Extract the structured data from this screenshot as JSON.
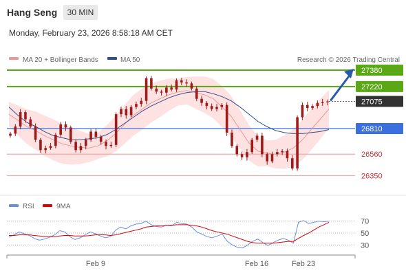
{
  "header": {
    "title": "Hang Seng",
    "timeframe": "30 MIN"
  },
  "timestamp": "Monday, February 23, 2026 8:58:18 AM CET",
  "legend": {
    "bollinger_label": "MA 20 + Bollinger Bands",
    "ma50_label": "MA 50",
    "rsi_label": "RSI",
    "rsi_ma_label": "9MA"
  },
  "copyright": "Research © 2026 Trading Central",
  "colors": {
    "resistance": "#5aa816",
    "pivot": "#3b6fe0",
    "support": "#f4a8a8",
    "current": "#333333",
    "candle": "#9d1b1b",
    "bands": "#fdd7d7",
    "ma20": "#e89a9a",
    "ma50": "#2f4f8f",
    "arrow": "#2a5aa8",
    "rsi": "#6a8fe0",
    "rsi_ma": "#e00000"
  },
  "chart_data": {
    "type": "line",
    "title": "Hang Seng",
    "subtitle": "30 MIN",
    "xlabel": "",
    "ylabel": "",
    "x_ticks": [
      "Feb 9",
      "Feb 16",
      "Feb 23"
    ],
    "price_range": [
      26300,
      27400
    ],
    "price_levels": [
      {
        "value": 27380,
        "label": "27380",
        "kind": "resistance"
      },
      {
        "value": 27220,
        "label": "27220",
        "kind": "resistance"
      },
      {
        "value": 27075,
        "label": "27075",
        "kind": "current"
      },
      {
        "value": 26810,
        "label": "26810",
        "kind": "pivot"
      },
      {
        "value": 26560,
        "label": "26560",
        "kind": "support"
      },
      {
        "value": 26350,
        "label": "26350",
        "kind": "support"
      }
    ],
    "series": [
      {
        "name": "MA 20 + Bollinger Bands",
        "values": [
          26950,
          26890,
          26830,
          26790,
          26740,
          26700,
          26660,
          26640,
          26625,
          26620,
          26640,
          26690,
          26760,
          26850,
          26940,
          27000,
          27060,
          27100,
          27140,
          27165,
          27180,
          27160,
          27140,
          27100,
          27020,
          26930,
          26800,
          26670,
          26590,
          26570,
          26560,
          26580,
          26620,
          26700,
          26800,
          26900,
          27000
        ]
      },
      {
        "name": "MA 50",
        "values": [
          27020,
          26940,
          26870,
          26830,
          26780,
          26740,
          26720,
          26700,
          26700,
          26710,
          26720,
          26750,
          26800,
          26860,
          26920,
          26980,
          27030,
          27070,
          27110,
          27140,
          27160,
          27170,
          27170,
          27150,
          27120,
          27080,
          27020,
          26950,
          26880,
          26830,
          26790,
          26770,
          26760,
          26760,
          26770,
          26780,
          26800
        ]
      }
    ],
    "price_close": [
      26760,
      26830,
      26970,
      26900,
      26830,
      26700,
      26600,
      26620,
      26640,
      26750,
      26850,
      26820,
      26680,
      26600,
      26640,
      26700,
      26780,
      26730,
      26680,
      26640,
      26650,
      26950,
      27000,
      26940,
      27020,
      27050,
      27080,
      27300,
      27200,
      27170,
      27160,
      27210,
      27190,
      27280,
      27260,
      27250,
      27200,
      27100,
      27060,
      27030,
      27000,
      27020,
      27040,
      26770,
      26640,
      26560,
      26530,
      26580,
      26700,
      26740,
      26560,
      26490,
      26560,
      26580,
      26590,
      26520,
      26420,
      26920,
      27040,
      27010,
      27030,
      27060,
      27070,
      27075
    ],
    "rsi": {
      "ylim": [
        20,
        80
      ],
      "ticks": [
        70,
        50,
        30
      ],
      "series": [
        {
          "name": "RSI",
          "values": [
            43,
            47,
            52,
            49,
            46,
            41,
            38,
            40,
            43,
            47,
            54,
            52,
            44,
            39,
            42,
            47,
            52,
            49,
            45,
            42,
            44,
            55,
            60,
            57,
            62,
            65,
            66,
            70,
            64,
            61,
            60,
            63,
            62,
            68,
            66,
            65,
            60,
            52,
            48,
            44,
            42,
            45,
            48,
            36,
            30,
            26,
            25,
            30,
            36,
            40,
            34,
            29,
            34,
            38,
            41,
            38,
            33,
            68,
            71,
            66,
            68,
            70,
            69,
            70
          ]
        },
        {
          "name": "9MA",
          "values": [
            46,
            46,
            47,
            47,
            47,
            46,
            45,
            44,
            44,
            44,
            45,
            46,
            46,
            45,
            45,
            45,
            46,
            47,
            47,
            47,
            46,
            47,
            49,
            51,
            53,
            55,
            57,
            60,
            61,
            62,
            62,
            63,
            63,
            64,
            64,
            64,
            63,
            62,
            60,
            57,
            54,
            52,
            50,
            48,
            45,
            42,
            39,
            36,
            34,
            33,
            33,
            33,
            33,
            34,
            35,
            36,
            36,
            41,
            46,
            50,
            55,
            60,
            64,
            68
          ]
        }
      ]
    }
  }
}
